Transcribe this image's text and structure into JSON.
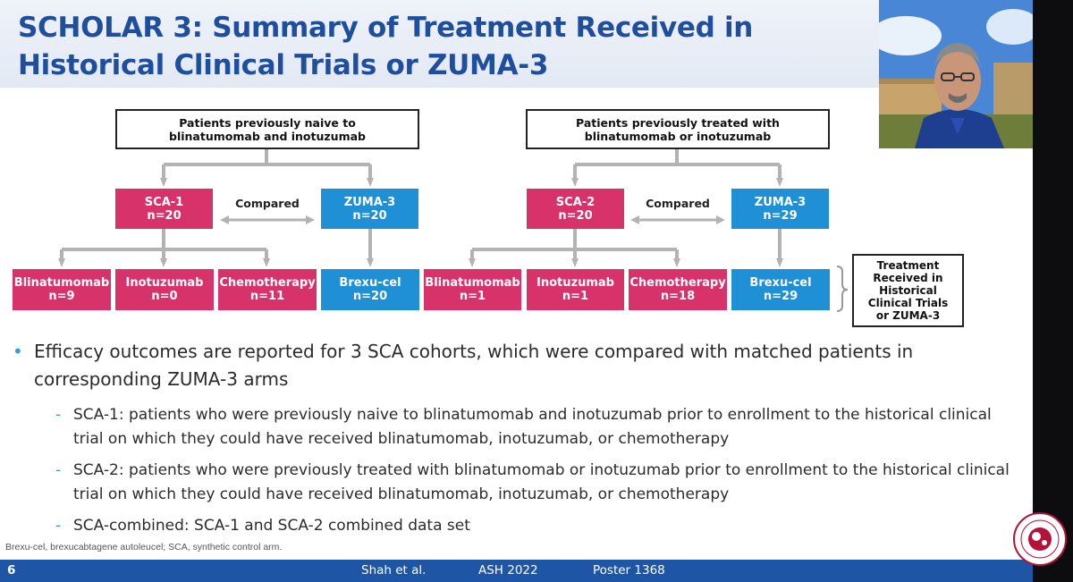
{
  "slide": {
    "title_line1": "SCHOLAR 3: Summary of Treatment Received in",
    "title_line2": "Historical Clinical Trials or ZUMA-3"
  },
  "diagram": {
    "left_group": {
      "header": [
        "Patients previously naive to",
        "blinatumomab and inotuzumab"
      ],
      "sca": {
        "name": "SCA-1",
        "n": "n=20"
      },
      "compared": "Compared",
      "zuma": {
        "name": "ZUMA-3",
        "n": "n=20"
      },
      "treatments": [
        {
          "name": "Blinatumomab",
          "n": "n=9"
        },
        {
          "name": "Inotuzumab",
          "n": "n=0"
        },
        {
          "name": "Chemotherapy",
          "n": "n=11"
        }
      ],
      "zuma_treatment": {
        "name": "Brexu-cel",
        "n": "n=20"
      }
    },
    "right_group": {
      "header": [
        "Patients previously treated with",
        "blinatumomab or inotuzumab"
      ],
      "sca": {
        "name": "SCA-2",
        "n": "n=20"
      },
      "compared": "Compared",
      "zuma": {
        "name": "ZUMA-3",
        "n": "n=29"
      },
      "treatments": [
        {
          "name": "Blinatumomab",
          "n": "n=1"
        },
        {
          "name": "Inotuzumab",
          "n": "n=1"
        },
        {
          "name": "Chemotherapy",
          "n": "n=18"
        }
      ],
      "zuma_treatment": {
        "name": "Brexu-cel",
        "n": "n=29"
      }
    },
    "legend": [
      "Treatment",
      "Received in",
      "Historical",
      "Clinical Trials",
      "or ZUMA-3"
    ]
  },
  "bullets": {
    "main": "Efficacy outcomes are reported for 3 SCA cohorts, which were compared with matched patients in corresponding ZUMA-3 arms",
    "sub": [
      "SCA-1: patients who were previously naive to blinatumomab and inotuzumab prior to enrollment to the historical clinical trial on which they could have received blinatumomab, inotuzumab, or chemotherapy",
      "SCA-2: patients who were previously treated with blinatumomab or inotuzumab prior to enrollment to the historical clinical trial on which they could have received blinatumomab, inotuzumab, or chemotherapy",
      "SCA-combined: SCA-1 and SCA-2 combined data set"
    ]
  },
  "footnote": "Brexu-cel, brexucabtagene autoleucel; SCA, synthetic control arm.",
  "footer": {
    "page": "6",
    "author": "Shah et al.",
    "meeting": "ASH 2022",
    "poster": "Poster 1368"
  },
  "colors": {
    "title": "#1f4e9c",
    "sca_box": "#d7336a",
    "zuma_box": "#1f8fd6",
    "connector": "#b3b3b3",
    "footer_bar": "#1f55a5",
    "bullet": "#3a9bd9"
  },
  "icons": {
    "presenter_video": "presenter-video-thumbnail",
    "society_logo": "american-society-of-hematology-logo"
  }
}
